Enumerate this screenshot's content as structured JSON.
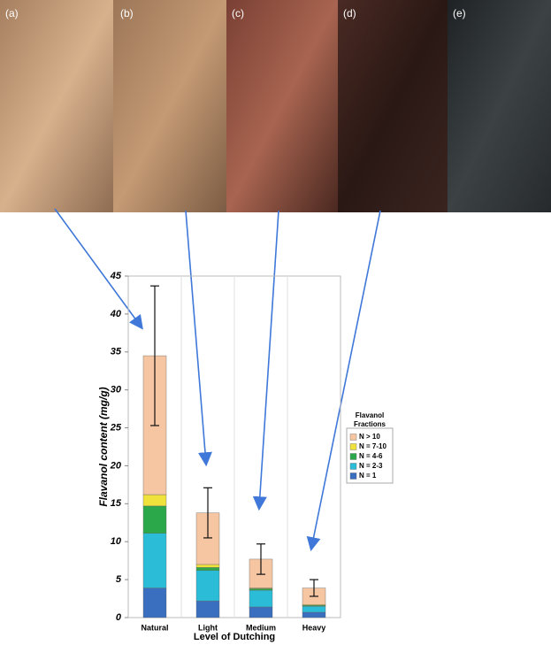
{
  "panels": [
    "(a)",
    "(b)",
    "(c)",
    "(d)",
    "(e)"
  ],
  "chart_data": {
    "type": "stacked-bar",
    "ylabel": "Flavanol content (mg/g)",
    "xlabel": "Level of Dutching",
    "legend_title": "Flavanol Fractions",
    "categories": [
      "Natural",
      "Light",
      "Medium",
      "Heavy"
    ],
    "series": [
      {
        "name": "N = 1",
        "color": "#3a6fc0",
        "values": [
          3.9,
          2.2,
          1.4,
          0.7
        ]
      },
      {
        "name": "N = 2-3",
        "color": "#2bbcd8",
        "values": [
          7.2,
          4.0,
          2.2,
          0.8
        ]
      },
      {
        "name": "N = 4-6",
        "color": "#2aa84a",
        "values": [
          3.6,
          0.4,
          0.2,
          0.1
        ]
      },
      {
        "name": "N = 7-10",
        "color": "#efe23c",
        "values": [
          1.5,
          0.4,
          0.1,
          0.1
        ]
      },
      {
        "name": "N > 10",
        "color": "#f6c6a2",
        "values": [
          18.3,
          6.8,
          3.8,
          2.2
        ]
      }
    ],
    "errors": [
      9.2,
      3.3,
      2.0,
      1.1
    ],
    "ylim": [
      0,
      45
    ],
    "yticks": [
      0,
      5,
      10,
      15,
      20,
      25,
      30,
      35,
      40,
      45
    ]
  }
}
